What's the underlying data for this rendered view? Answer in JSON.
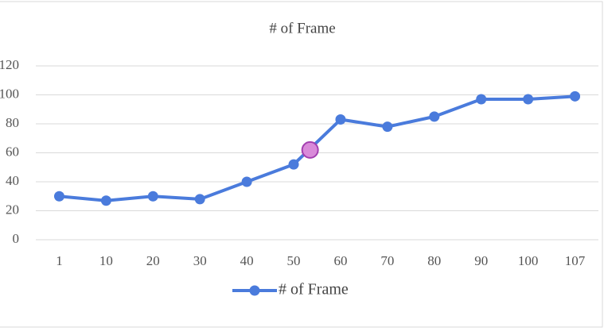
{
  "chart_data": {
    "type": "line",
    "title": "# of Frame",
    "categories": [
      "1",
      "10",
      "20",
      "30",
      "40",
      "50",
      "60",
      "70",
      "80",
      "90",
      "100",
      "107"
    ],
    "series": [
      {
        "name": "# of Frame",
        "color": "#4a7bdc",
        "values": [
          30,
          27,
          30,
          28,
          40,
          52,
          83,
          78,
          85,
          97,
          97,
          99
        ]
      }
    ],
    "highlight": {
      "x": 53.5,
      "value": 62,
      "color": "#d98ad9"
    },
    "ylim": [
      0,
      120
    ],
    "yticks": [
      0,
      20,
      40,
      60,
      80,
      100,
      120
    ],
    "grid": true,
    "legend": "bottom"
  }
}
